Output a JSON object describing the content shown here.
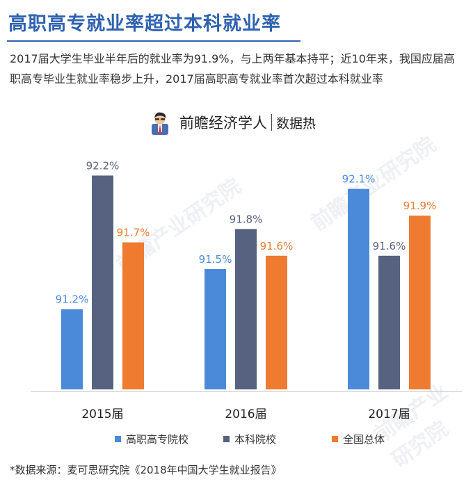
{
  "header": {
    "title": "高职高专就业率超过本科就业率",
    "description": "2017届大学生毕业半年后的就业率为91.9%，与上两年基本持平；近10年来，我国应届高职高专毕业生就业率稳步上升，2017届高职高专就业率首次超过本科就业率"
  },
  "brand": {
    "name": "前瞻经济学人",
    "sub": "数据热"
  },
  "source": "*数据来源：麦可思研究院《2018年中国大学生就业报告》",
  "watermark": "前瞻产业研究院",
  "chart_data": {
    "type": "bar",
    "categories": [
      "2015届",
      "2016届",
      "2017届"
    ],
    "series": [
      {
        "name": "高职高专院校",
        "values": [
          91.2,
          91.5,
          92.1
        ],
        "labels": [
          "91.2%",
          "91.5%",
          "92.1%"
        ],
        "color": "#4a8ad8"
      },
      {
        "name": "本科院校",
        "values": [
          92.2,
          91.8,
          91.6
        ],
        "labels": [
          "92.2%",
          "91.8%",
          "91.6%"
        ],
        "color": "#56627f"
      },
      {
        "name": "全国总体",
        "values": [
          91.7,
          91.6,
          91.9
        ],
        "labels": [
          "91.7%",
          "91.6%",
          "91.9%"
        ],
        "color": "#ee7b30"
      }
    ],
    "ylim": [
      90.6,
      92.4
    ],
    "label_colors": {
      "高职高专院校": "#4a8ad8",
      "本科院校": "#56627f",
      "全国总体": "#ee7b30"
    },
    "grid": false,
    "legend_position": "bottom"
  }
}
